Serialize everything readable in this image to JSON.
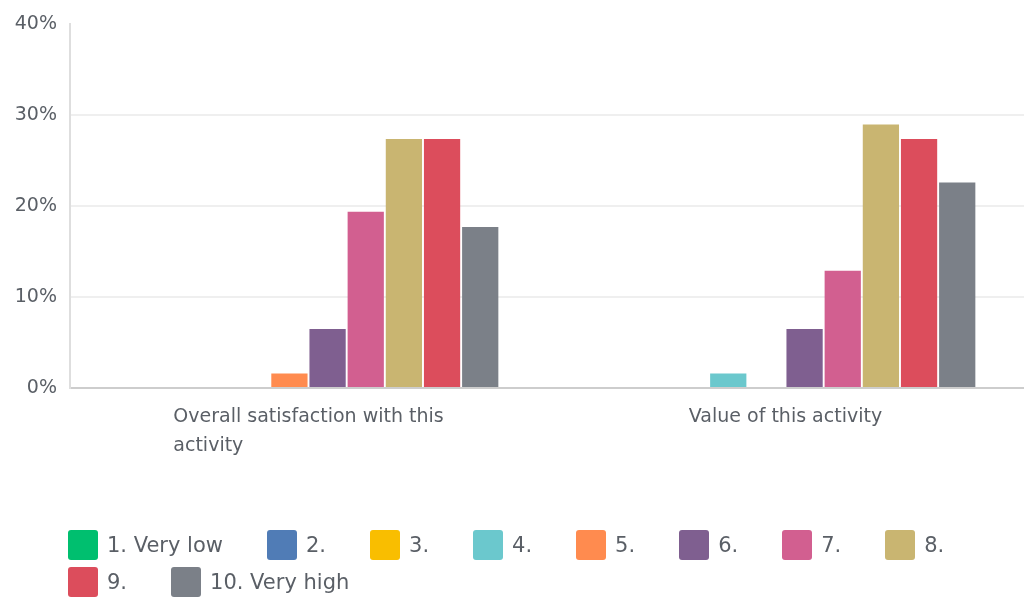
{
  "chart_data": {
    "type": "bar",
    "categories": [
      "Overall satisfaction with this activity",
      "Value of this activity"
    ],
    "series": [
      {
        "name": "1. Very low",
        "color": "#00bf6f",
        "values": [
          0,
          0
        ]
      },
      {
        "name": "2.",
        "color": "#507cb6",
        "values": [
          0,
          0
        ]
      },
      {
        "name": "3.",
        "color": "#f9be00",
        "values": [
          0,
          0
        ]
      },
      {
        "name": "4.",
        "color": "#6bc8cd",
        "values": [
          0,
          1.6
        ]
      },
      {
        "name": "5.",
        "color": "#ff8b4f",
        "values": [
          1.6,
          0
        ]
      },
      {
        "name": "6.",
        "color": "#7f5f90",
        "values": [
          6.5,
          6.5
        ]
      },
      {
        "name": "7.",
        "color": "#d25f90",
        "values": [
          19.4,
          12.9
        ]
      },
      {
        "name": "8.",
        "color": "#c9b571",
        "values": [
          27.4,
          29.0
        ]
      },
      {
        "name": "9.",
        "color": "#dc4d5c",
        "values": [
          27.4,
          27.4
        ]
      },
      {
        "name": "10. Very high",
        "color": "#7b8088",
        "values": [
          17.7,
          22.6
        ]
      }
    ],
    "ylim": [
      0,
      40
    ],
    "yticks": [
      {
        "value": 0,
        "label": "0%"
      },
      {
        "value": 10,
        "label": "10%"
      },
      {
        "value": 20,
        "label": "20%"
      },
      {
        "value": 30,
        "label": "30%"
      },
      {
        "value": 40,
        "label": "40%"
      }
    ],
    "grid": "y",
    "legend": "bottom"
  }
}
